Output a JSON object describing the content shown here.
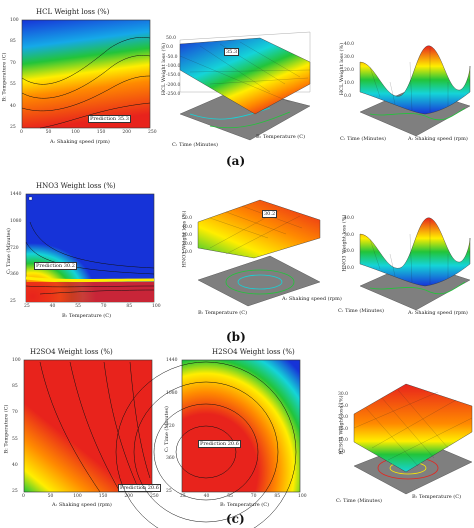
{
  "chart_data": [
    {
      "type": "heatmap",
      "id": "a1",
      "title": "HCL Weight loss (%)",
      "xlabel": "A: Shaking speed (rpm)",
      "ylabel": "B: Temperature (C)",
      "xticks": [
        "0",
        "50",
        "100",
        "150",
        "200",
        "250"
      ],
      "yticks": [
        "25",
        "40",
        "55",
        "70",
        "85",
        "100"
      ],
      "annotation": "Prediction 35.3"
    },
    {
      "type": "surface",
      "id": "a2",
      "zlabel": "HCL Weight loss (%)",
      "xlabel": "C: Time (Minutes)",
      "ylabel": "B: Temperature (C)",
      "zticks": [
        "50.0",
        "0.0",
        "-50.0",
        "-100.0",
        "-150.0",
        "-200.0",
        "-250.0"
      ],
      "xticks": [
        "1440",
        "733",
        "25"
      ],
      "yticks": [
        "25",
        "40",
        "70",
        "100"
      ],
      "annotation": "35.3"
    },
    {
      "type": "surface",
      "id": "a3",
      "zlabel": "HCL Weight loss (%)",
      "xlabel": "C: Time (Minutes)",
      "ylabel": "A: Shaking speed (rpm)",
      "zticks": [
        "40.0",
        "30.0",
        "20.0",
        "10.0",
        "0.0"
      ],
      "xticks": [
        "1080",
        "733",
        "25"
      ],
      "yticks": [
        "0",
        "100",
        "200",
        "250"
      ]
    },
    {
      "type": "heatmap",
      "id": "b1",
      "title": "HNO3 Weight loss (%)",
      "xlabel": "B: Temperature (C)",
      "ylabel": "C: Time (Minutes)",
      "xticks": [
        "25",
        "40",
        "55",
        "70",
        "85",
        "100"
      ],
      "yticks": [
        "25",
        "360",
        "720",
        "1080",
        "1440"
      ],
      "annotation": "Prediction 30.2"
    },
    {
      "type": "surface",
      "id": "b2",
      "zlabel": "HNO3 Weight loss (%)",
      "xlabel": "B: Temperature (C)",
      "ylabel": "A: Shaking speed (rpm)",
      "zticks": [
        "50.0",
        "40.0",
        "30.0",
        "20.0",
        "10.0"
      ],
      "xticks": [
        "100",
        "55",
        "25"
      ],
      "yticks": [
        "0",
        "100",
        "200"
      ],
      "annotation": "30.2"
    },
    {
      "type": "surface",
      "id": "b3",
      "zlabel": "HNO3 Weight loss (%)",
      "xlabel": "C: Time (Minutes)",
      "ylabel": "A: Shaking speed (rpm)",
      "zticks": [
        "40.0",
        "30.0",
        "20.0",
        "10.0"
      ],
      "xticks": [
        "1440",
        "733",
        "25"
      ],
      "yticks": [
        "0",
        "100",
        "200"
      ]
    },
    {
      "type": "heatmap",
      "id": "c1",
      "title": "H2SO4 Weight loss (%)",
      "xlabel": "A: Shaking speed (rpm)",
      "ylabel": "B: Temperature (C)",
      "xticks": [
        "0",
        "50",
        "100",
        "150",
        "200",
        "250"
      ],
      "yticks": [
        "25",
        "40",
        "55",
        "70",
        "85",
        "100"
      ],
      "annotation": "Prediction 20.6"
    },
    {
      "type": "heatmap",
      "id": "c2",
      "title": "H2SO4 Weight loss (%)",
      "xlabel": "B: Temperature (C)",
      "ylabel": "C: Time (Minutes)",
      "xticks": [
        "25",
        "40",
        "55",
        "70",
        "85",
        "100"
      ],
      "yticks": [
        "25",
        "360",
        "720",
        "1080",
        "1440"
      ],
      "annotation": "Prediction 20.6"
    },
    {
      "type": "surface",
      "id": "c3",
      "zlabel": "H2SO4 Weight loss (%)",
      "xlabel": "C: Time (Minutes)",
      "ylabel": "B: Temperature (C)",
      "zticks": [
        "30.0",
        "25.0",
        "20.0",
        "15.0",
        "10.0",
        "5.0"
      ],
      "xticks": [
        "1440",
        "733",
        "25"
      ],
      "yticks": [
        "25",
        "55",
        "100"
      ]
    }
  ],
  "captions": {
    "a": "(a)",
    "b": "(b)",
    "c": "(c)"
  },
  "colors": {
    "red": "#e8231c",
    "orange": "#ff8a00",
    "yellow": "#ffee00",
    "green": "#22c43a",
    "cyan": "#15d4d8",
    "blue": "#1633d8",
    "floor": "#7f7f7f"
  }
}
